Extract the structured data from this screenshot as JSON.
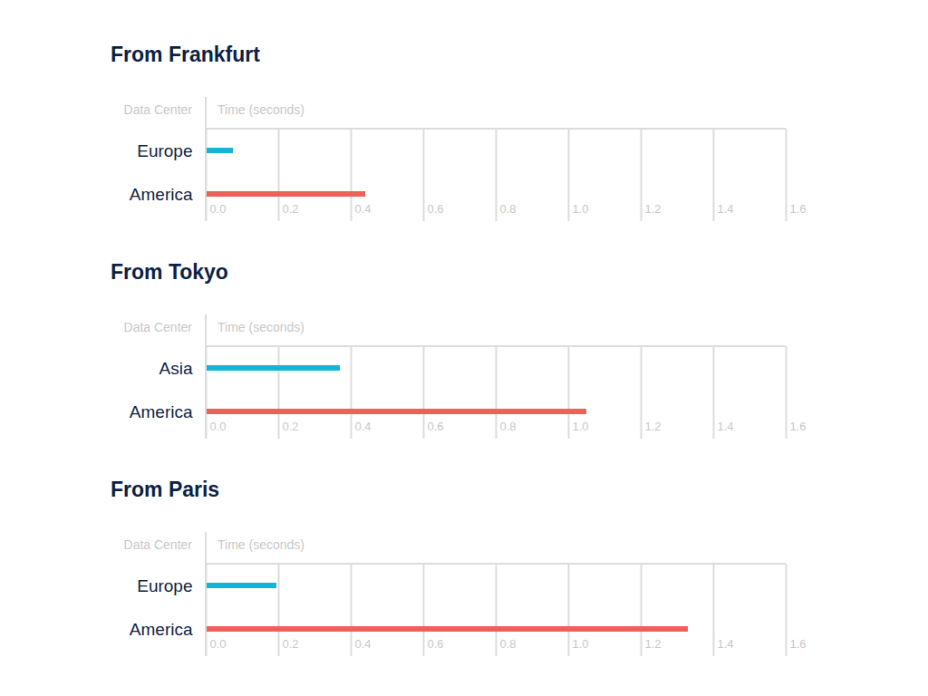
{
  "chart_data": [
    {
      "type": "bar",
      "orientation": "horizontal",
      "title": "From Frankfurt",
      "xlabel": "Time (seconds)",
      "ylabel": "Data Center",
      "categories": [
        "Europe",
        "America"
      ],
      "values": [
        0.075,
        0.44
      ],
      "colors": [
        "#14b4d8",
        "#f0605a"
      ],
      "xlim": [
        0,
        1.6
      ],
      "xticks": [
        {
          "value": 0,
          "label": "0.0"
        },
        0.2,
        0.4,
        0.6,
        0.8,
        {
          "value": 1,
          "label": "1.0"
        },
        1.2,
        1.4,
        1.6
      ],
      "grid": true
    },
    {
      "type": "bar",
      "orientation": "horizontal",
      "title": "From Tokyo",
      "xlabel": "Time (seconds)",
      "ylabel": "Data Center",
      "categories": [
        "Asia",
        "America"
      ],
      "values": [
        0.37,
        1.05
      ],
      "colors": [
        "#14b4d8",
        "#f0605a"
      ],
      "xlim": [
        0,
        1.6
      ],
      "xticks": [
        {
          "value": 0,
          "label": "0.0"
        },
        0.2,
        0.4,
        0.6,
        0.8,
        {
          "value": 1,
          "label": "1.0"
        },
        1.2,
        1.4,
        1.6
      ],
      "grid": true
    },
    {
      "type": "bar",
      "orientation": "horizontal",
      "title": "From Paris",
      "xlabel": "Time (seconds)",
      "ylabel": "Data Center",
      "categories": [
        "Europe",
        "America"
      ],
      "values": [
        0.195,
        1.33
      ],
      "colors": [
        "#14b4d8",
        "#f0605a"
      ],
      "xlim": [
        0,
        1.6
      ],
      "xticks": [
        {
          "value": 0,
          "label": "0.0"
        },
        0.2,
        0.4,
        0.6,
        0.8,
        {
          "value": 1,
          "label": "1.0"
        },
        1.2,
        1.4,
        1.6
      ],
      "grid": true
    }
  ]
}
